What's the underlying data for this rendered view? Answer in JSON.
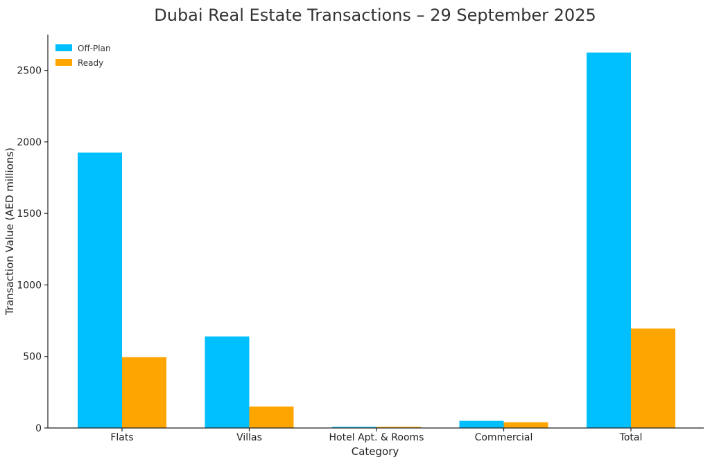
{
  "chart_data": {
    "type": "bar",
    "title": "Dubai Real Estate Transactions – 29 September 2025",
    "xlabel": "Category",
    "ylabel": "Transaction Value (AED millions)",
    "categories": [
      "Flats",
      "Villas",
      "Hotel Apt. & Rooms",
      "Commercial",
      "Total"
    ],
    "series": [
      {
        "name": "Off-Plan",
        "color": "#00bfff",
        "values": [
          1925,
          640,
          8,
          50,
          2625
        ]
      },
      {
        "name": "Ready",
        "color": "#ffa500",
        "values": [
          495,
          150,
          8,
          40,
          695
        ]
      }
    ],
    "ylim": [
      0,
      2750
    ],
    "yticks": [
      0,
      500,
      1000,
      1500,
      2000,
      2500
    ],
    "grid": false,
    "legend": "top-left"
  }
}
